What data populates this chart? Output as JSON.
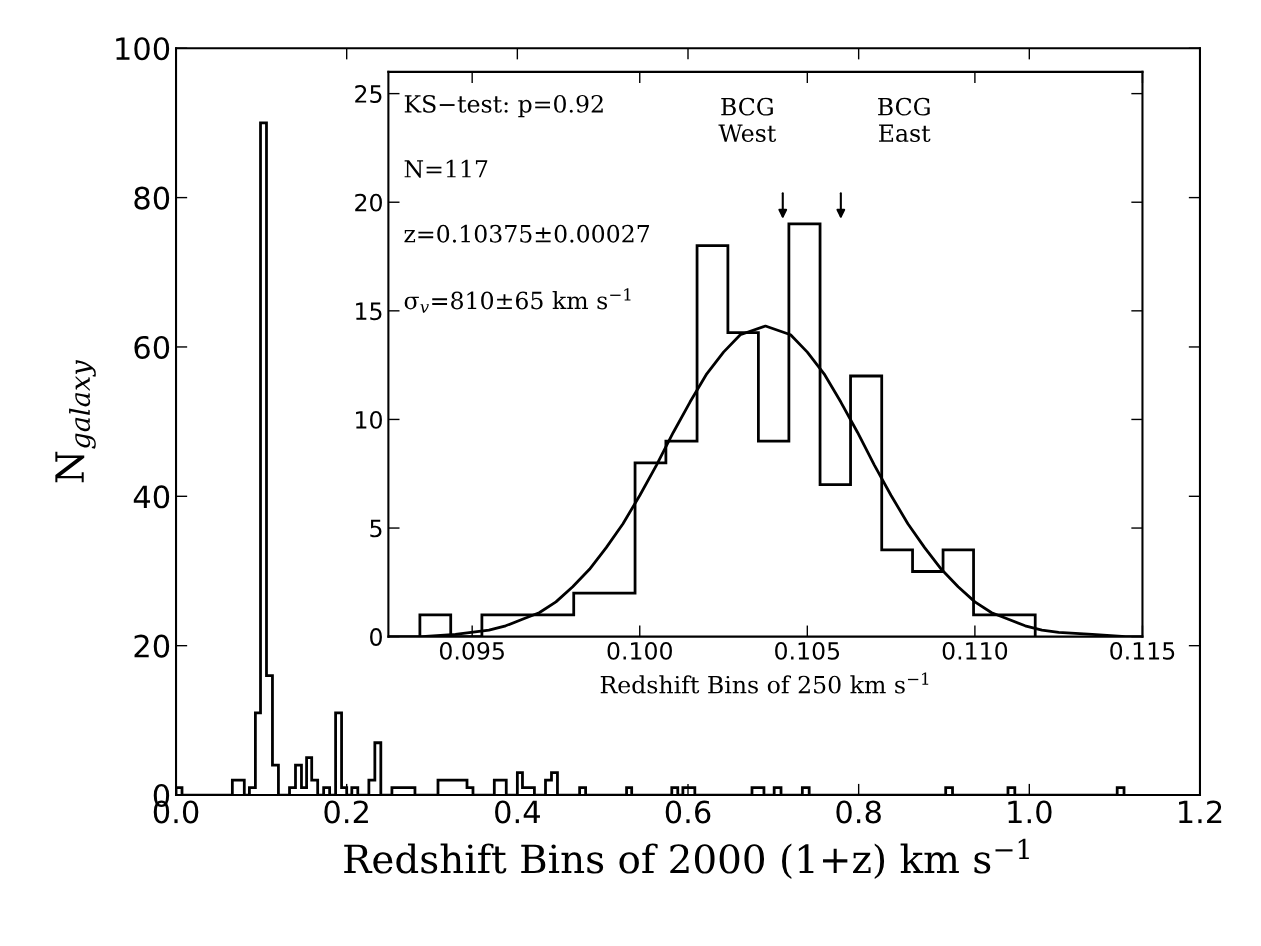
{
  "chart_data": [
    {
      "type": "histogram",
      "xlabel": "Redshift Bins of 2000 (1+z) km s$^{−1}$",
      "ylabel": "N$_{galaxy}$",
      "bins": [
        0.0,
        0.007,
        0.066,
        0.08,
        0.086,
        0.093,
        0.099,
        0.106,
        0.113,
        0.12,
        0.133,
        0.14,
        0.147,
        0.153,
        0.159,
        0.166,
        0.173,
        0.18,
        0.187,
        0.194,
        0.2,
        0.206,
        0.213,
        0.226,
        0.233,
        0.24,
        0.253,
        0.28,
        0.307,
        0.341,
        0.348,
        0.373,
        0.387,
        0.4,
        0.406,
        0.42,
        0.433,
        0.44,
        0.447,
        0.473,
        0.48,
        0.528,
        0.534,
        0.581,
        0.588,
        0.594,
        0.608,
        0.675,
        0.689,
        0.701,
        0.709,
        0.734,
        0.742,
        0.902,
        0.91,
        0.975,
        0.983,
        1.103,
        1.111
      ],
      "values": [
        1,
        0,
        2,
        0,
        1,
        11,
        90,
        16,
        4,
        0,
        1,
        4,
        1,
        5,
        2,
        0,
        1,
        0,
        11,
        1,
        0,
        1,
        0,
        2,
        7,
        0,
        1,
        0,
        2,
        1,
        0,
        2,
        0,
        3,
        1,
        0,
        2,
        3,
        0,
        1,
        0,
        1,
        0,
        1,
        0,
        1,
        0,
        1,
        0,
        1,
        0,
        1,
        0,
        1,
        0,
        1,
        0,
        1
      ],
      "color": "#000000",
      "xlim": [
        0,
        1.2
      ],
      "ylim": [
        0,
        100
      ],
      "xticks": [
        {
          "value": 0,
          "label": "0.0"
        },
        0.2,
        0.4,
        0.6,
        0.8,
        {
          "value": 1,
          "label": "1.0"
        },
        1.2
      ],
      "yticks": [
        0,
        20,
        40,
        60,
        80,
        100
      ],
      "grid": false
    },
    {
      "type": "histogram",
      "xlabel": "Redshift Bins of 250 km s$^{−1}$",
      "series": [
        {
          "type": "histogram",
          "color": "#000000",
          "bins": [
            0.09344,
            0.09436,
            0.09529,
            0.09621,
            0.09712,
            0.09803,
            0.09895,
            0.09986,
            0.10078,
            0.10171,
            0.10263,
            0.10354,
            0.10445,
            0.10538,
            0.10629,
            0.10722,
            0.10814,
            0.10905,
            0.10996,
            0.11089,
            0.1118
          ],
          "values": [
            1,
            0,
            1,
            1,
            1,
            2,
            2,
            8,
            9,
            18,
            14,
            9,
            19,
            7,
            12,
            4,
            3,
            4,
            1,
            1
          ]
        },
        {
          "type": "line",
          "color": "#000000",
          "x": [
            0.0925,
            0.0935,
            0.0945,
            0.0955,
            0.096,
            0.0965,
            0.097,
            0.0975,
            0.098,
            0.0985,
            0.099,
            0.0995,
            0.1,
            0.1005,
            0.101,
            0.1015,
            0.102,
            0.1025,
            0.103,
            0.10375,
            0.1045,
            0.105,
            0.1055,
            0.106,
            0.1065,
            0.107,
            0.1075,
            0.108,
            0.1085,
            0.109,
            0.1095,
            0.11,
            0.1105,
            0.111,
            0.1115,
            0.112,
            0.1125,
            0.1135,
            0.1145,
            0.115
          ],
          "values": [
            0.0,
            0.0,
            0.1,
            0.3,
            0.5,
            0.8,
            1.1,
            1.6,
            2.3,
            3.1,
            4.1,
            5.2,
            6.5,
            7.9,
            9.4,
            10.8,
            12.1,
            13.1,
            13.9,
            14.3,
            13.9,
            13.1,
            12.1,
            10.8,
            9.4,
            7.9,
            6.5,
            5.2,
            4.1,
            3.1,
            2.3,
            1.6,
            1.1,
            0.8,
            0.5,
            0.3,
            0.2,
            0.1,
            0.0,
            0.0
          ]
        }
      ],
      "annotations": [
        "KS−test: p=0.92",
        "N=117",
        "z=0.10375±0.00027",
        "σ$_{v}$=810±65 km s$^{−1}$",
        "BCG\nWest",
        "BCG\nEast"
      ],
      "xlim": [
        0.0925,
        0.115
      ],
      "ylim": [
        0,
        26
      ],
      "xticks": [
        0.095,
        {
          "value": 0.1,
          "label": "0.100"
        },
        0.105,
        {
          "value": 0.11,
          "label": "0.110"
        },
        0.115
      ],
      "yticks": [
        0,
        5,
        10,
        15,
        20,
        25
      ],
      "grid": false
    }
  ]
}
